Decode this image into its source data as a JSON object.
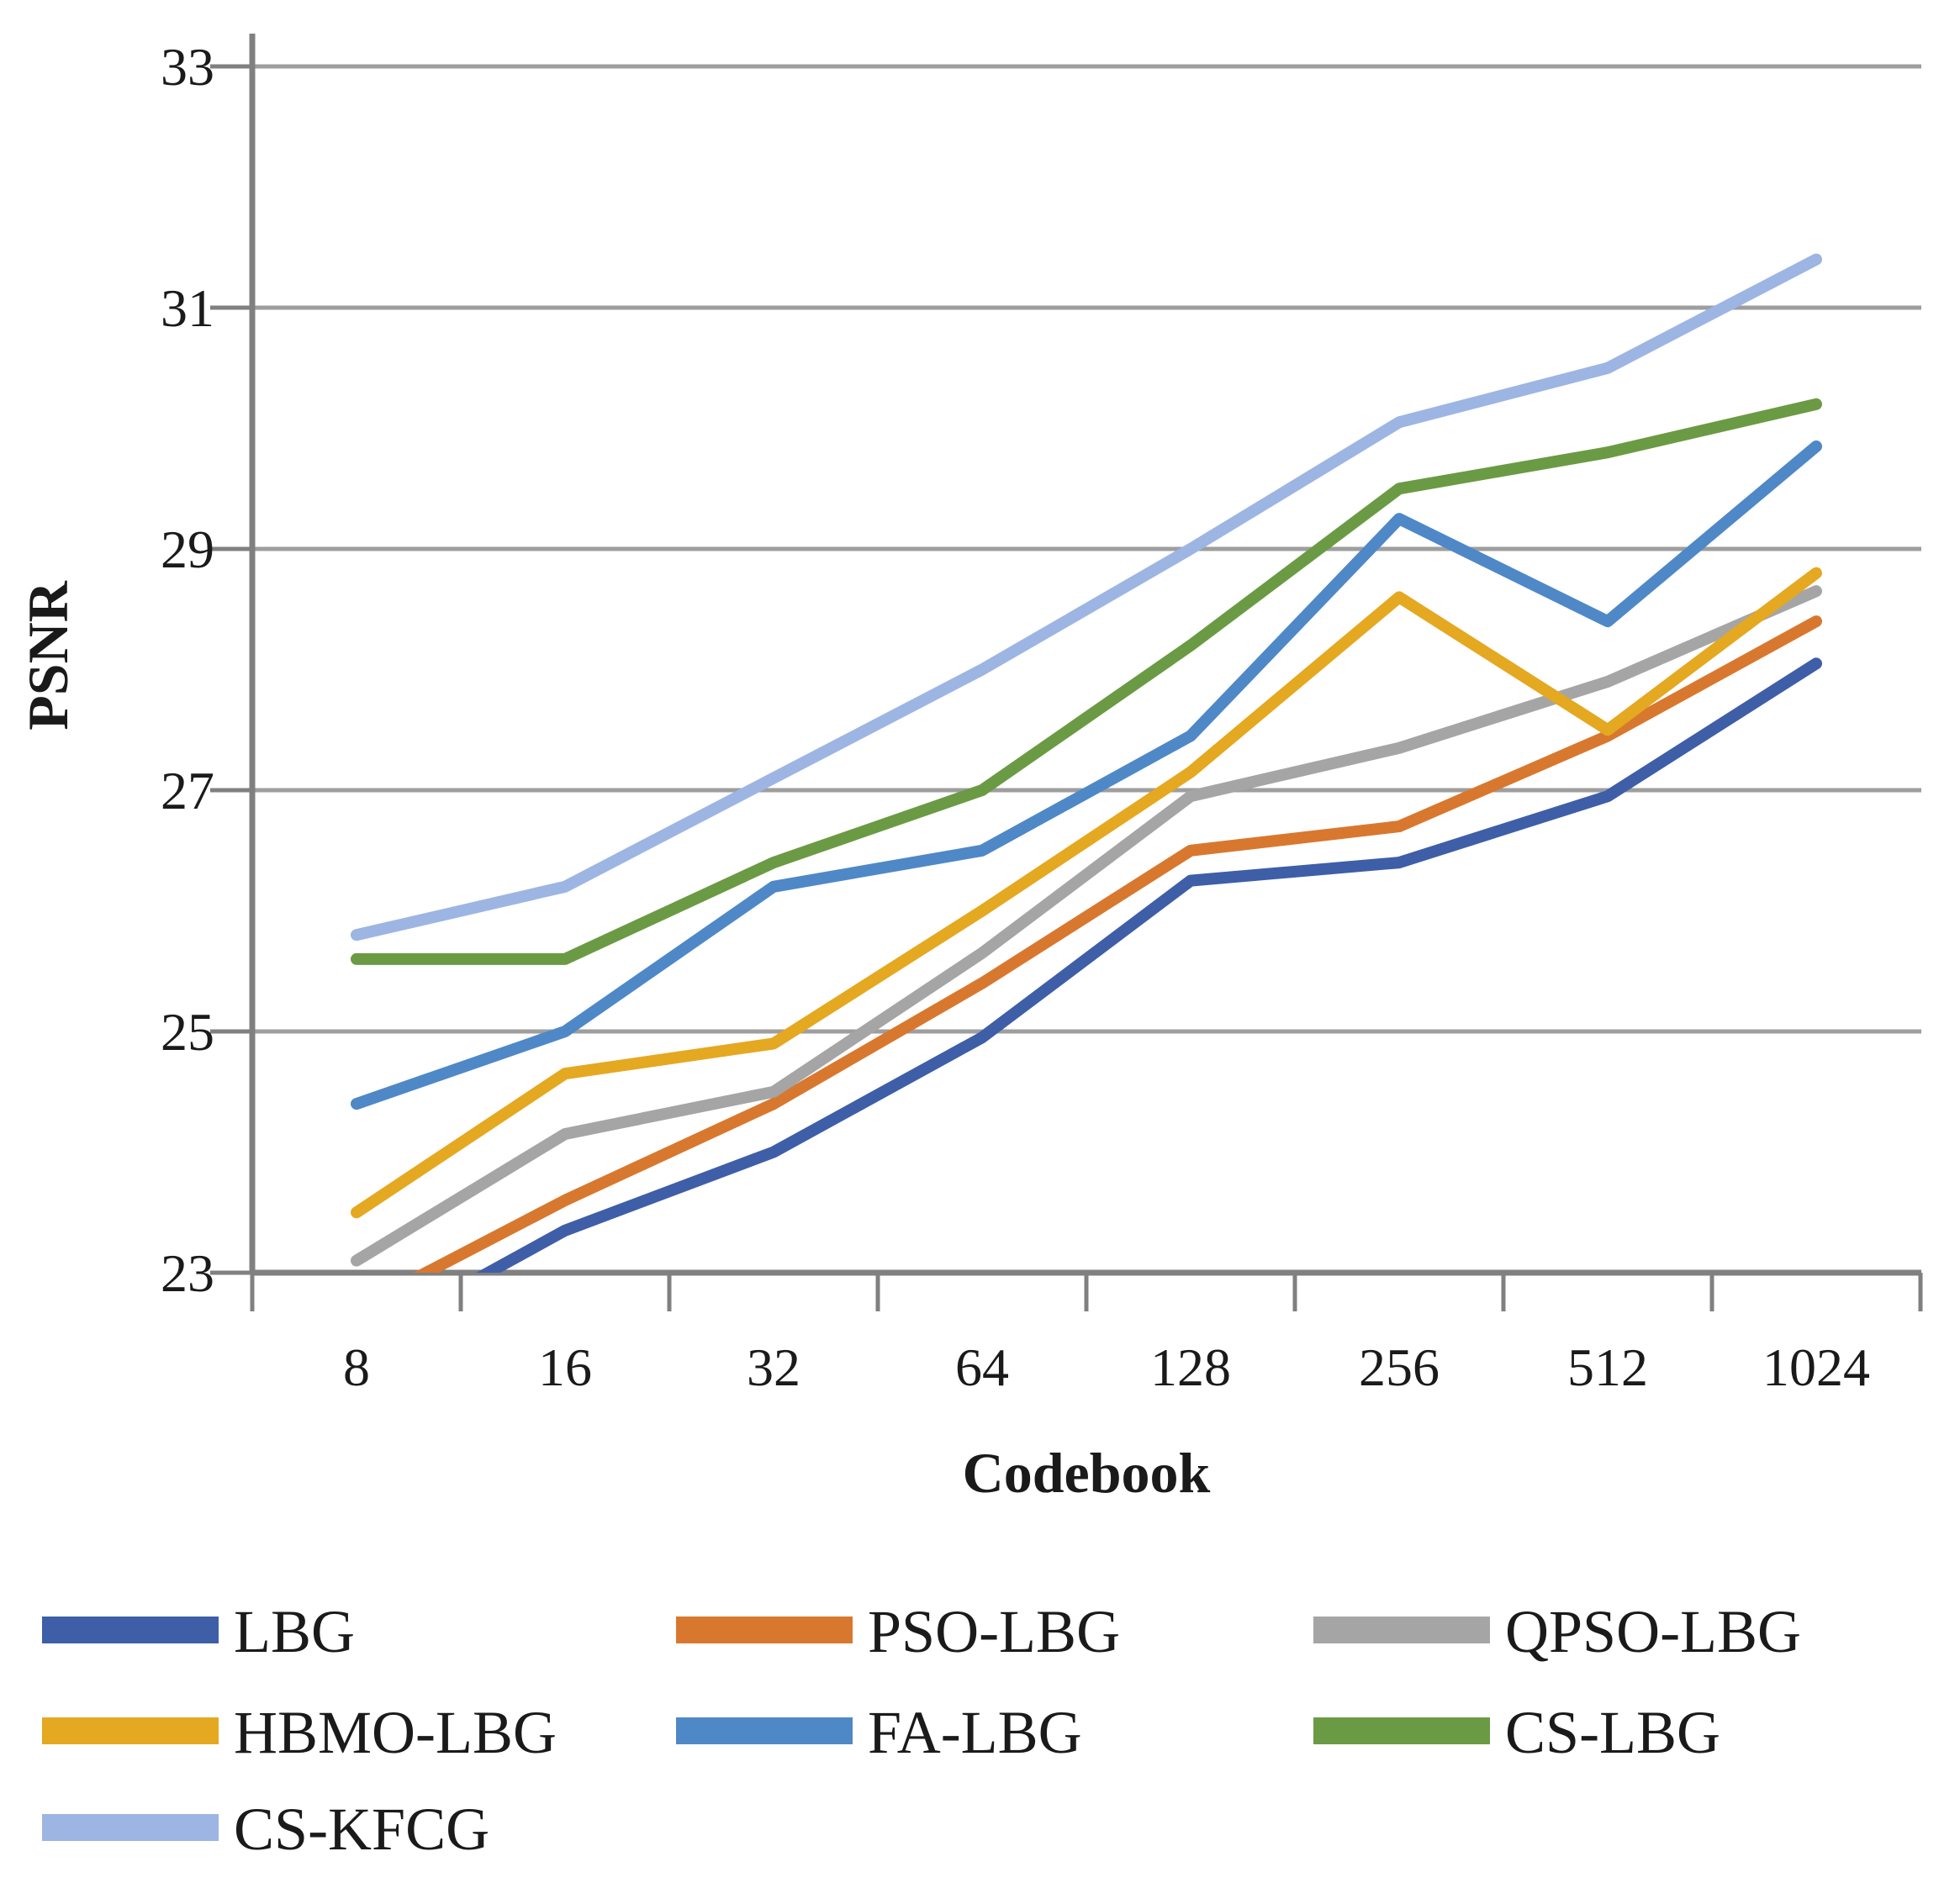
{
  "chart_data": {
    "type": "line",
    "title": "",
    "xlabel": "Codebook",
    "ylabel": "PSNR",
    "ylim": [
      23,
      33
    ],
    "y_tick_labels": [
      "33",
      "31",
      "29",
      "27",
      "25",
      "23"
    ],
    "y_tick_values": [
      33,
      31,
      29,
      27,
      25,
      23
    ],
    "categories": [
      "8",
      "16",
      "32",
      "64",
      "128",
      "256",
      "512",
      "1024"
    ],
    "grid": "horizontal-only",
    "legend_position": "bottom-left, 3 columns",
    "series": [
      {
        "name": "LBG",
        "color": "#3F5EA8",
        "values": [
          22.4,
          23.35,
          24.0,
          24.95,
          26.25,
          26.4,
          26.95,
          28.05
        ]
      },
      {
        "name": "PSO-LBG",
        "color": "#D8782F",
        "values": [
          22.7,
          23.6,
          24.4,
          25.4,
          26.5,
          26.7,
          27.45,
          28.4
        ]
      },
      {
        "name": "QPSO-LBG",
        "color": "#A5A5A5",
        "values": [
          23.1,
          24.15,
          24.5,
          25.65,
          26.95,
          27.35,
          27.9,
          28.65
        ]
      },
      {
        "name": "HBMO-LBG",
        "color": "#E4A821",
        "values": [
          23.5,
          24.65,
          24.9,
          26.0,
          27.15,
          28.6,
          27.5,
          28.8
        ]
      },
      {
        "name": "FA-LBG",
        "color": "#4F88C6",
        "values": [
          24.4,
          25.0,
          26.2,
          26.5,
          27.45,
          29.25,
          28.4,
          29.85
        ]
      },
      {
        "name": "CS-LBG",
        "color": "#6B9A44",
        "values": [
          25.6,
          25.6,
          26.4,
          27.0,
          28.2,
          29.5,
          29.8,
          30.2
        ]
      },
      {
        "name": "CS-KFCG",
        "color": "#9DB5E2",
        "values": [
          25.8,
          26.2,
          27.1,
          28.0,
          29.0,
          30.05,
          30.5,
          31.4
        ]
      }
    ]
  }
}
